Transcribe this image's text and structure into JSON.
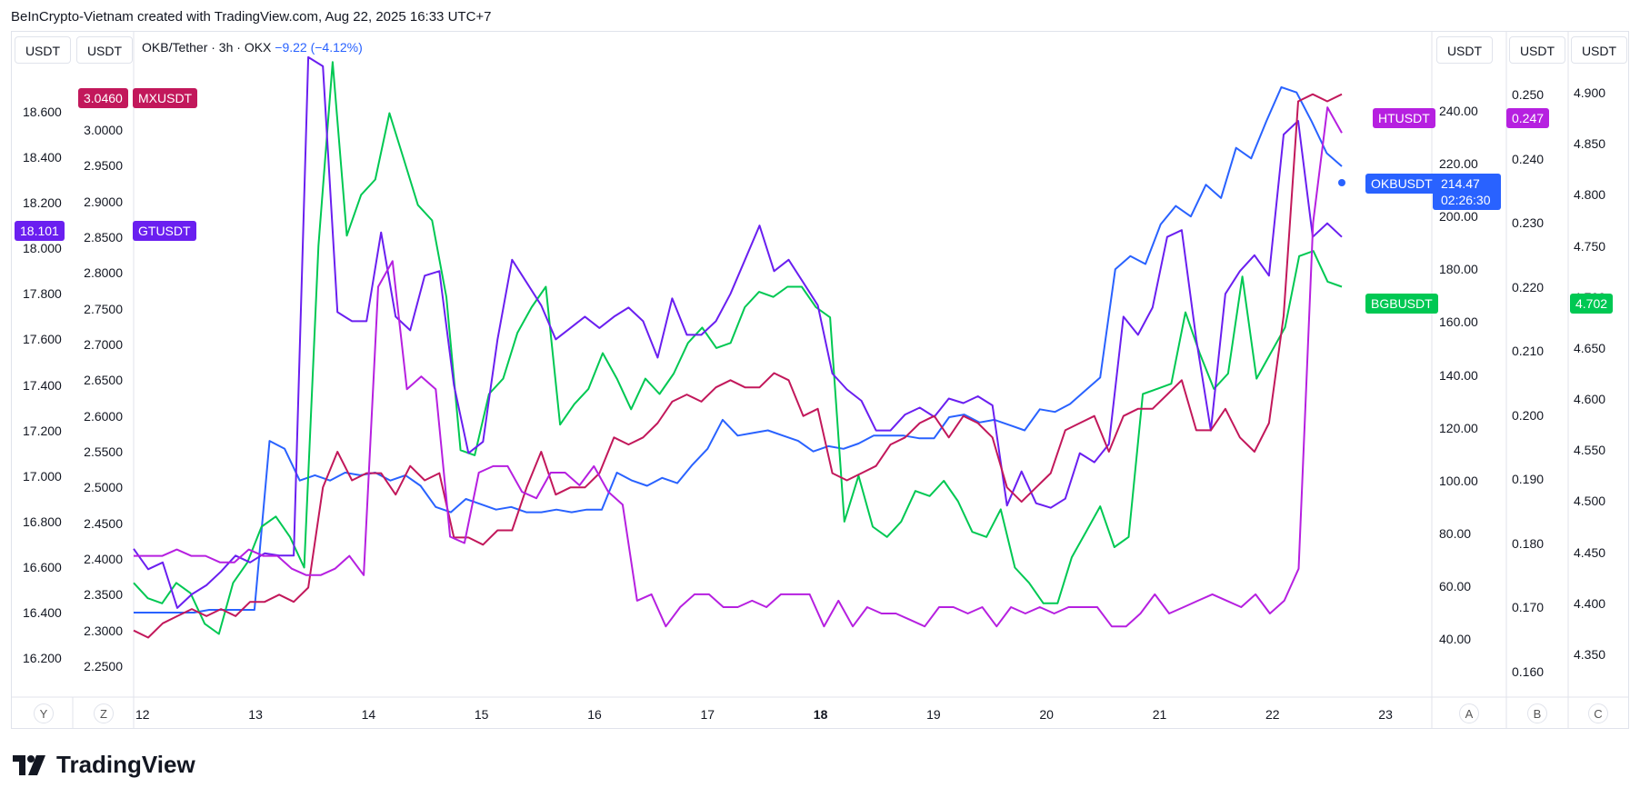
{
  "caption": "BeInCrypto-Vietnam created with TradingView.com, Aug 22, 2025 16:33 UTC+7",
  "units": {
    "left1": "USDT",
    "left2": "USDT",
    "right1": "USDT",
    "right2": "USDT",
    "right3": "USDT"
  },
  "legend": {
    "symbol": "OKB/Tether · 3h · OKX",
    "change": "−9.22 (−4.12%)"
  },
  "scale_letters": {
    "y": "Y",
    "z": "Z",
    "a": "A",
    "b": "B",
    "c": "C"
  },
  "logo_text": "TradingView",
  "colors": {
    "okb": "#2962ff",
    "bgb": "#00c853",
    "gt": "#6a1ff0",
    "mx": "#c2185b",
    "ht": "#b620e0"
  },
  "badges": {
    "mx_value": "3.0460",
    "mx_name": "MXUSDT",
    "gt_value": "18.101",
    "gt_name": "GTUSDT",
    "ht_name": "HTUSDT",
    "ht_value": "0.247",
    "okb_name": "OKBUSDT",
    "okb_value": "214.47",
    "okb_countdown": "02:26:30",
    "bgb_name": "BGBUSDT",
    "bgb_value": "4.702"
  },
  "chart_data": {
    "type": "line",
    "x_labels": [
      "12",
      "13",
      "14",
      "15",
      "16",
      "17",
      "18",
      "19",
      "20",
      "21",
      "22",
      "23"
    ],
    "axes": {
      "Y": {
        "ticks": [
          "18.600",
          "18.400",
          "18.200",
          "18.000",
          "17.800",
          "17.600",
          "17.400",
          "17.200",
          "17.000",
          "16.800",
          "16.600",
          "16.400",
          "16.200"
        ]
      },
      "Z": {
        "ticks": [
          "3.0000",
          "2.9500",
          "2.9000",
          "2.8500",
          "2.8000",
          "2.7500",
          "2.7000",
          "2.6500",
          "2.6000",
          "2.5500",
          "2.5000",
          "2.4500",
          "2.4000",
          "2.3500",
          "2.3000",
          "2.2500"
        ]
      },
      "A": {
        "ticks": [
          "240.00",
          "220.00",
          "200.00",
          "180.00",
          "160.00",
          "140.00",
          "120.00",
          "100.00",
          "80.00",
          "60.00",
          "40.00"
        ]
      },
      "B": {
        "ticks": [
          "0.250",
          "0.240",
          "0.230",
          "0.220",
          "0.210",
          "0.200",
          "0.190",
          "0.180",
          "0.170",
          "0.160"
        ]
      },
      "C": {
        "ticks": [
          "4.900",
          "4.850",
          "4.800",
          "4.750",
          "4.700",
          "4.650",
          "4.600",
          "4.550",
          "4.500",
          "4.450",
          "4.400",
          "4.350"
        ]
      }
    },
    "series": [
      {
        "name": "OKBUSDT",
        "axis": "A",
        "color": "#2962ff",
        "values": [
          50,
          50,
          50,
          50,
          50,
          51,
          51,
          51,
          51,
          115,
          112,
          100,
          102,
          100,
          103,
          102,
          103,
          100,
          102,
          98,
          90,
          88,
          93,
          91,
          89,
          90,
          88,
          88,
          89,
          88,
          89,
          89,
          103,
          100,
          98,
          101,
          99,
          106,
          112,
          123,
          117,
          118,
          119,
          117,
          115,
          111,
          113,
          112,
          114,
          117,
          117,
          117,
          116,
          116,
          124,
          125,
          122,
          123,
          121,
          119,
          127,
          126,
          129,
          134,
          139,
          180,
          185,
          182,
          197,
          204,
          200,
          212,
          207,
          226,
          222,
          236,
          249,
          247,
          236,
          224,
          219
        ]
      },
      {
        "name": "BGBUSDT",
        "axis": "C",
        "color": "#00c853",
        "values": [
          4.42,
          4.405,
          4.4,
          4.42,
          4.41,
          4.38,
          4.37,
          4.42,
          4.44,
          4.475,
          4.485,
          4.465,
          4.435,
          4.75,
          4.93,
          4.76,
          4.8,
          4.815,
          4.88,
          4.835,
          4.79,
          4.775,
          4.7,
          4.55,
          4.545,
          4.605,
          4.62,
          4.665,
          4.69,
          4.71,
          4.575,
          4.595,
          4.61,
          4.645,
          4.62,
          4.59,
          4.62,
          4.605,
          4.625,
          4.655,
          4.67,
          4.65,
          4.655,
          4.69,
          4.705,
          4.7,
          4.71,
          4.71,
          4.69,
          4.68,
          4.48,
          4.525,
          4.475,
          4.465,
          4.48,
          4.51,
          4.505,
          4.52,
          4.5,
          4.47,
          4.465,
          4.492,
          4.435,
          4.42,
          4.4,
          4.4,
          4.445,
          4.47,
          4.495,
          4.455,
          4.465,
          4.605,
          4.61,
          4.615,
          4.685,
          4.645,
          4.61,
          4.625,
          4.72,
          4.62,
          4.645,
          4.67,
          4.74,
          4.745,
          4.715,
          4.71
        ]
      },
      {
        "name": "GTUSDT",
        "axis": "Y",
        "color": "#6a1ff0",
        "values": [
          16.68,
          16.59,
          16.62,
          16.42,
          16.48,
          16.52,
          16.58,
          16.65,
          16.62,
          16.66,
          16.65,
          16.65,
          18.84,
          18.8,
          17.72,
          17.68,
          17.68,
          18.07,
          17.7,
          17.64,
          17.88,
          17.9,
          17.4,
          17.1,
          17.15,
          17.6,
          17.95,
          17.85,
          17.75,
          17.6,
          17.65,
          17.7,
          17.65,
          17.7,
          17.74,
          17.68,
          17.52,
          17.78,
          17.62,
          17.62,
          17.68,
          17.8,
          17.95,
          18.1,
          17.9,
          17.95,
          17.85,
          17.75,
          17.45,
          17.38,
          17.33,
          17.2,
          17.2,
          17.27,
          17.3,
          17.26,
          17.34,
          17.32,
          17.35,
          17.31,
          16.87,
          17.02,
          16.88,
          16.86,
          16.9,
          17.1,
          17.06,
          17.14,
          17.7,
          17.62,
          17.74,
          18.05,
          18.08,
          17.6,
          17.2,
          17.8,
          17.9,
          17.97,
          17.88,
          18.5,
          18.56,
          18.05,
          18.11,
          18.05
        ]
      },
      {
        "name": "MXUSDT",
        "axis": "Z",
        "color": "#c2185b",
        "values": [
          2.3,
          2.29,
          2.31,
          2.32,
          2.33,
          2.32,
          2.33,
          2.32,
          2.34,
          2.34,
          2.35,
          2.34,
          2.36,
          2.5,
          2.55,
          2.51,
          2.52,
          2.52,
          2.49,
          2.53,
          2.51,
          2.52,
          2.43,
          2.43,
          2.42,
          2.44,
          2.44,
          2.5,
          2.55,
          2.49,
          2.5,
          2.5,
          2.52,
          2.57,
          2.56,
          2.57,
          2.59,
          2.62,
          2.63,
          2.62,
          2.64,
          2.65,
          2.64,
          2.64,
          2.66,
          2.65,
          2.6,
          2.61,
          2.52,
          2.51,
          2.52,
          2.53,
          2.56,
          2.57,
          2.59,
          2.6,
          2.57,
          2.6,
          2.59,
          2.57,
          2.5,
          2.48,
          2.5,
          2.52,
          2.58,
          2.59,
          2.6,
          2.55,
          2.6,
          2.61,
          2.61,
          2.63,
          2.65,
          2.58,
          2.58,
          2.61,
          2.57,
          2.55,
          2.59,
          2.74,
          3.04,
          3.05,
          3.04,
          3.05
        ]
      },
      {
        "name": "HTUSDT",
        "axis": "B",
        "color": "#b620e0",
        "values": [
          0.178,
          0.178,
          0.178,
          0.179,
          0.178,
          0.178,
          0.177,
          0.177,
          0.179,
          0.178,
          0.178,
          0.176,
          0.175,
          0.175,
          0.176,
          0.178,
          0.175,
          0.22,
          0.224,
          0.204,
          0.206,
          0.204,
          0.181,
          0.18,
          0.191,
          0.192,
          0.192,
          0.188,
          0.187,
          0.191,
          0.191,
          0.189,
          0.192,
          0.188,
          0.186,
          0.171,
          0.172,
          0.167,
          0.17,
          0.172,
          0.172,
          0.17,
          0.17,
          0.171,
          0.17,
          0.172,
          0.172,
          0.172,
          0.167,
          0.171,
          0.167,
          0.17,
          0.169,
          0.169,
          0.168,
          0.167,
          0.17,
          0.17,
          0.169,
          0.17,
          0.167,
          0.17,
          0.169,
          0.17,
          0.169,
          0.17,
          0.17,
          0.17,
          0.167,
          0.167,
          0.169,
          0.172,
          0.169,
          0.17,
          0.171,
          0.172,
          0.171,
          0.17,
          0.172,
          0.169,
          0.171,
          0.176,
          0.23,
          0.248,
          0.244
        ]
      }
    ]
  }
}
